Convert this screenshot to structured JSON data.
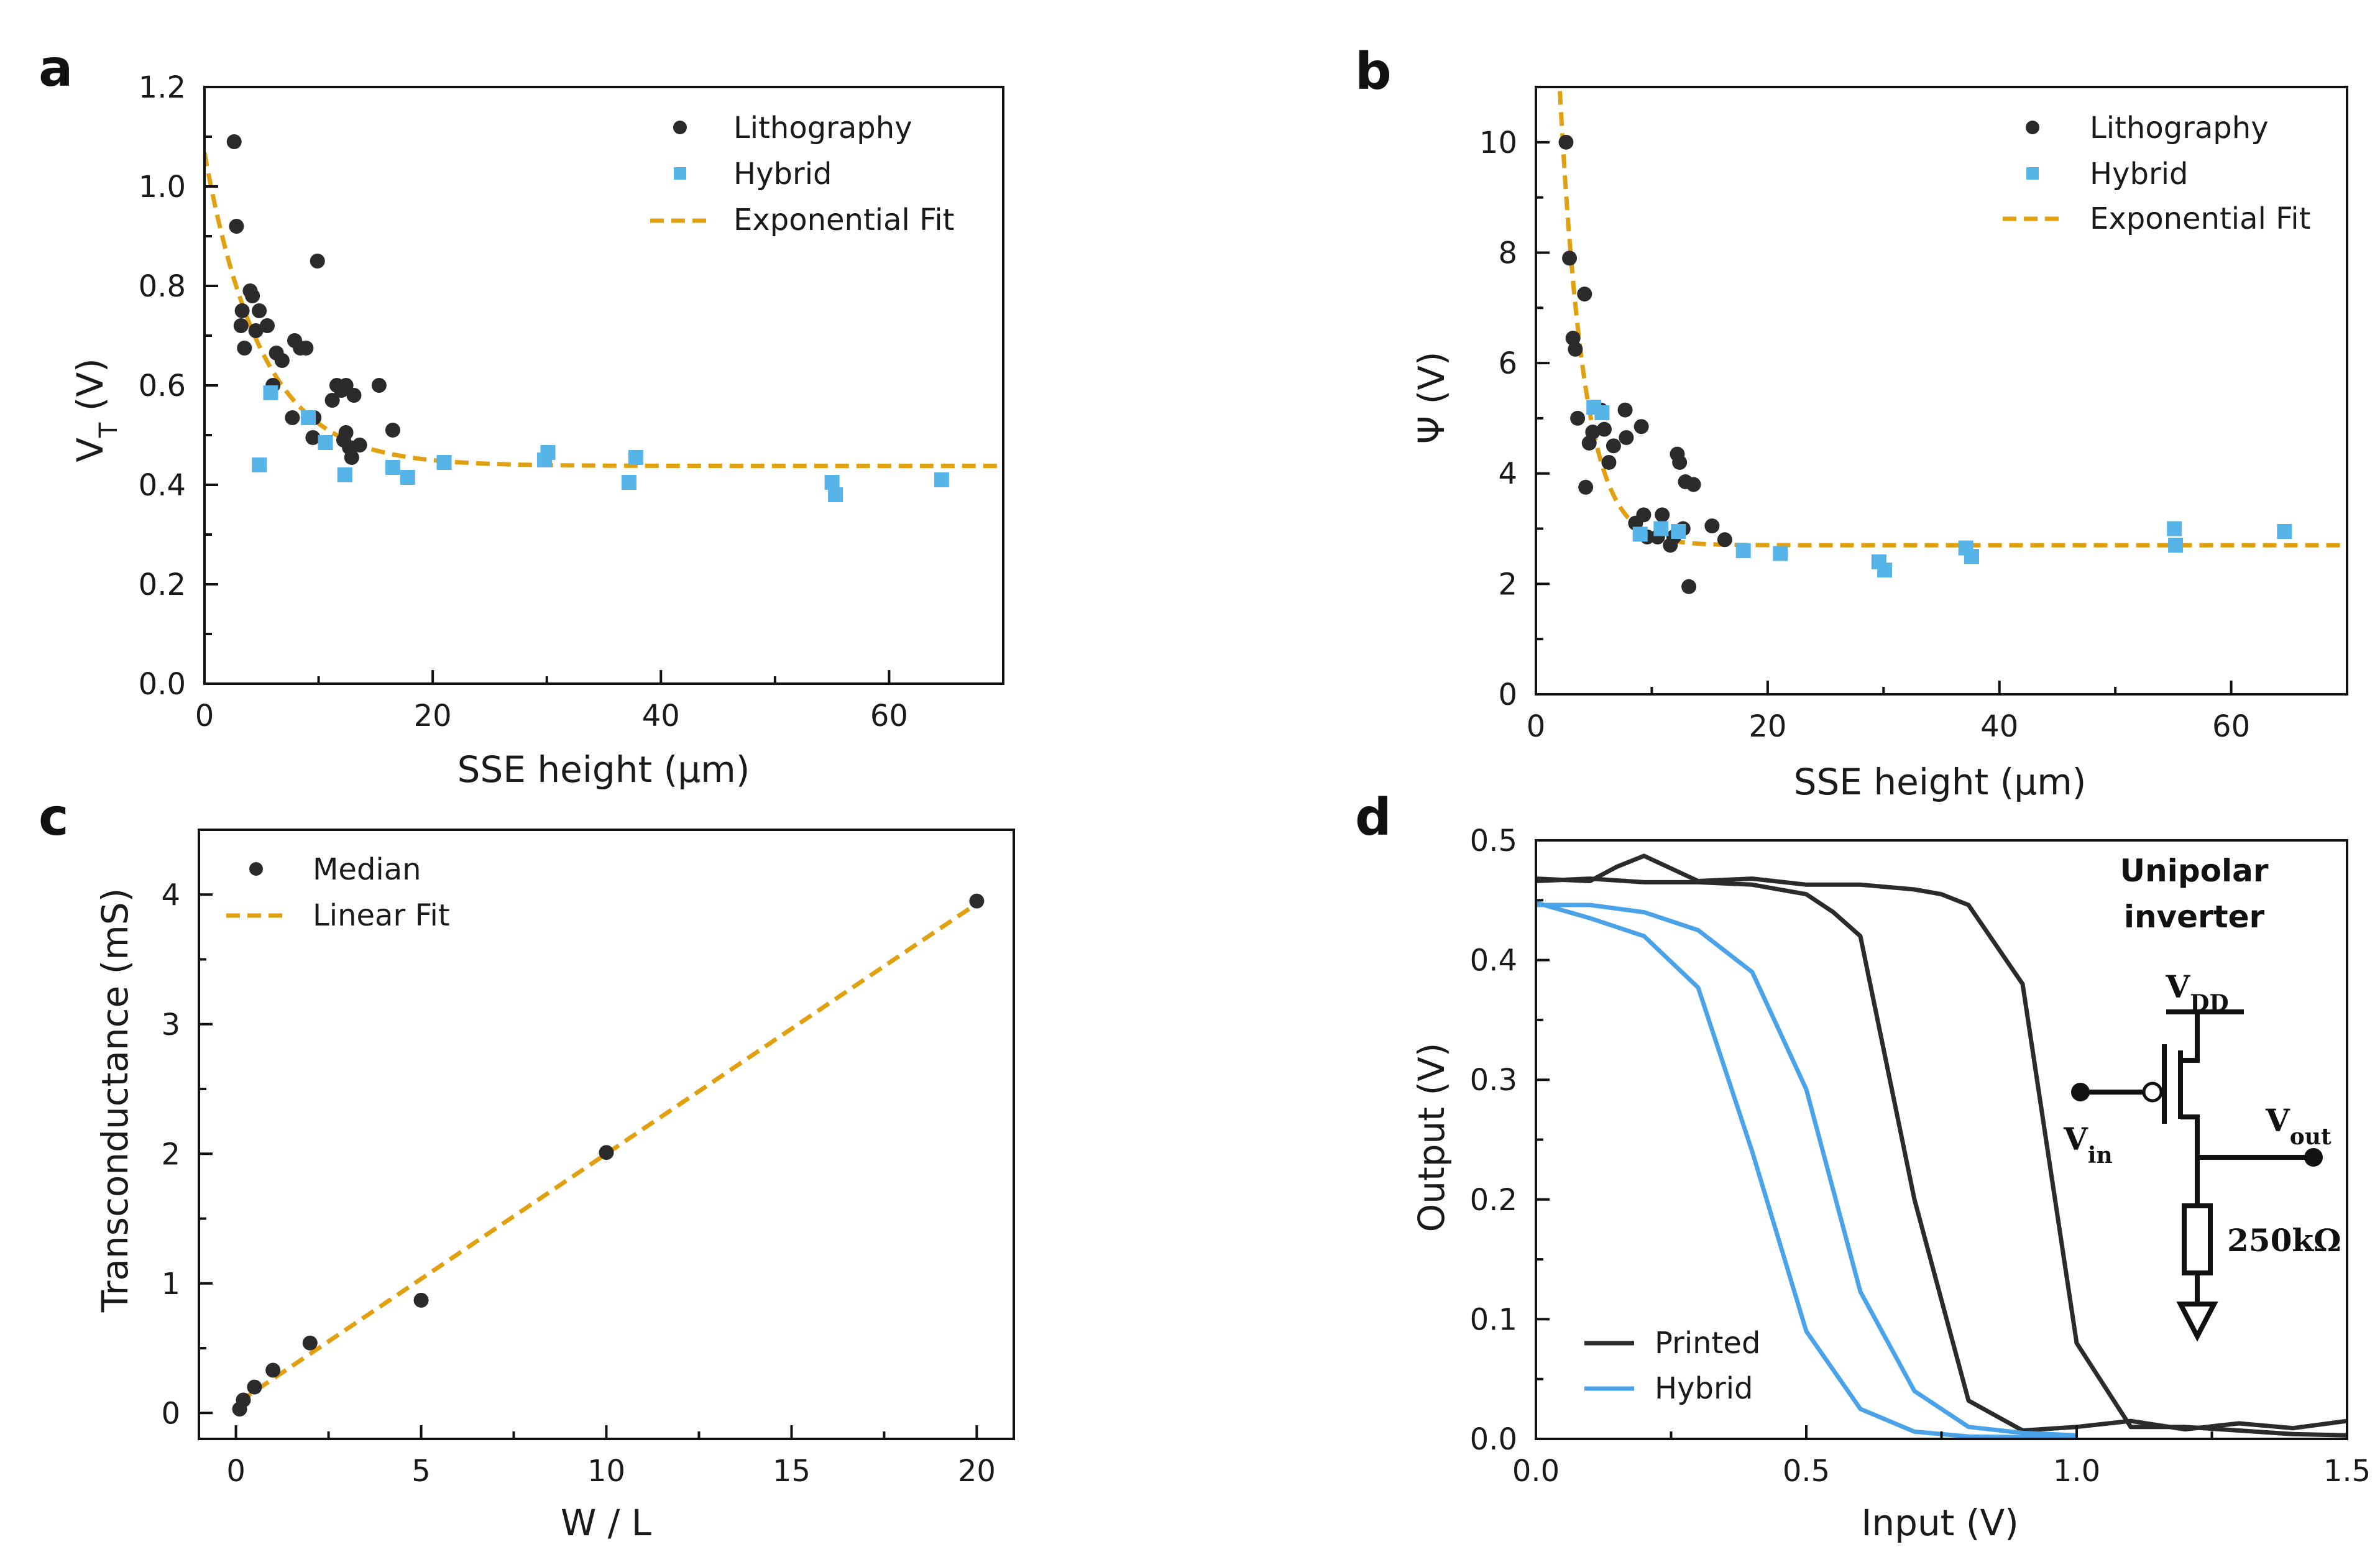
{
  "colors": {
    "lithography": "#2b2b2b",
    "hybrid": "#56b4e9",
    "fit": "#e0a010",
    "printed_line": "#2b2b2b",
    "hybrid_line": "#4aa3e8",
    "axes": "#111111"
  },
  "chart_data": [
    {
      "id": "a",
      "panel_label": "a",
      "type": "scatter",
      "xlabel": "SSE height (μm)",
      "ylabel_main": "V",
      "ylabel_sub": "T",
      "ylabel_unit": " (V)",
      "xlim": [
        0,
        70
      ],
      "ylim": [
        0,
        1.2
      ],
      "xticks": [
        0,
        20,
        40,
        60
      ],
      "xtick_labels": [
        "0",
        "20",
        "40",
        "60"
      ],
      "yticks": [
        0,
        0.2,
        0.4,
        0.6,
        0.8,
        1.0,
        1.2
      ],
      "ytick_labels": [
        "0.0",
        "0.2",
        "0.4",
        "0.6",
        "0.8",
        "1.0",
        "1.2"
      ],
      "legend": [
        "Lithography",
        "Hybrid",
        "Exponential Fit"
      ],
      "series": [
        {
          "name": "Lithography",
          "marker": "circle",
          "points": [
            [
              2.6,
              1.09
            ],
            [
              2.8,
              0.92
            ],
            [
              3.2,
              0.72
            ],
            [
              3.3,
              0.75
            ],
            [
              3.5,
              0.675
            ],
            [
              4.0,
              0.79
            ],
            [
              4.2,
              0.78
            ],
            [
              4.5,
              0.71
            ],
            [
              4.8,
              0.75
            ],
            [
              5.5,
              0.72
            ],
            [
              6.0,
              0.6
            ],
            [
              6.3,
              0.665
            ],
            [
              6.8,
              0.65
            ],
            [
              7.7,
              0.535
            ],
            [
              7.9,
              0.69
            ],
            [
              8.4,
              0.675
            ],
            [
              8.9,
              0.675
            ],
            [
              9.5,
              0.495
            ],
            [
              9.6,
              0.535
            ],
            [
              9.9,
              0.85
            ],
            [
              11.2,
              0.57
            ],
            [
              11.6,
              0.6
            ],
            [
              12.0,
              0.59
            ],
            [
              12.2,
              0.49
            ],
            [
              12.4,
              0.505
            ],
            [
              12.4,
              0.6
            ],
            [
              12.7,
              0.475
            ],
            [
              12.9,
              0.455
            ],
            [
              13.1,
              0.58
            ],
            [
              13.6,
              0.48
            ],
            [
              15.3,
              0.6
            ],
            [
              16.5,
              0.51
            ]
          ]
        },
        {
          "name": "Hybrid",
          "marker": "square",
          "points": [
            [
              4.8,
              0.44
            ],
            [
              5.8,
              0.585
            ],
            [
              9.1,
              0.535
            ],
            [
              10.6,
              0.485
            ],
            [
              12.3,
              0.42
            ],
            [
              16.5,
              0.435
            ],
            [
              17.8,
              0.415
            ],
            [
              21.0,
              0.445
            ],
            [
              29.8,
              0.45
            ],
            [
              30.1,
              0.465
            ],
            [
              37.2,
              0.405
            ],
            [
              37.8,
              0.455
            ],
            [
              55.0,
              0.405
            ],
            [
              55.3,
              0.38
            ],
            [
              64.6,
              0.41
            ]
          ]
        },
        {
          "name": "Exponential Fit",
          "type": "line",
          "model": "exponential",
          "a": 0.438,
          "b": 0.63,
          "tau": 5.0,
          "x_range": [
            0,
            70
          ]
        }
      ]
    },
    {
      "id": "b",
      "panel_label": "b",
      "type": "scatter",
      "xlabel": "SSE height (μm)",
      "ylabel_main": "Ψ (V)",
      "ylabel_sub": "",
      "ylabel_unit": "",
      "xlim": [
        0,
        70
      ],
      "ylim": [
        0,
        11
      ],
      "xticks": [
        0,
        20,
        40,
        60
      ],
      "xtick_labels": [
        "0",
        "20",
        "40",
        "60"
      ],
      "yticks": [
        0,
        2,
        4,
        6,
        8,
        10
      ],
      "ytick_labels": [
        "0",
        "2",
        "4",
        "6",
        "8",
        "10"
      ],
      "legend": [
        "Lithography",
        "Hybrid",
        "Exponential Fit"
      ],
      "series": [
        {
          "name": "Lithography",
          "marker": "circle",
          "points": [
            [
              2.6,
              10.0
            ],
            [
              2.9,
              7.9
            ],
            [
              3.2,
              6.45
            ],
            [
              3.4,
              6.25
            ],
            [
              3.6,
              5.0
            ],
            [
              4.2,
              7.25
            ],
            [
              4.3,
              3.75
            ],
            [
              4.6,
              4.55
            ],
            [
              4.9,
              4.75
            ],
            [
              5.6,
              5.15
            ],
            [
              5.9,
              4.8
            ],
            [
              6.3,
              4.2
            ],
            [
              6.7,
              4.5
            ],
            [
              7.7,
              5.15
            ],
            [
              7.8,
              4.65
            ],
            [
              8.6,
              3.1
            ],
            [
              9.1,
              4.85
            ],
            [
              9.3,
              3.25
            ],
            [
              9.6,
              2.85
            ],
            [
              10.5,
              2.85
            ],
            [
              10.9,
              3.25
            ],
            [
              11.6,
              2.7
            ],
            [
              11.9,
              2.85
            ],
            [
              12.2,
              4.35
            ],
            [
              12.4,
              4.2
            ],
            [
              12.7,
              3.0
            ],
            [
              12.9,
              3.85
            ],
            [
              13.2,
              1.95
            ],
            [
              13.6,
              3.8
            ],
            [
              15.2,
              3.05
            ],
            [
              16.3,
              2.8
            ]
          ]
        },
        {
          "name": "Hybrid",
          "marker": "square",
          "points": [
            [
              5.0,
              5.2
            ],
            [
              5.7,
              5.1
            ],
            [
              9.0,
              2.9
            ],
            [
              10.8,
              3.0
            ],
            [
              12.3,
              2.95
            ],
            [
              17.9,
              2.6
            ],
            [
              21.1,
              2.55
            ],
            [
              29.6,
              2.4
            ],
            [
              30.1,
              2.25
            ],
            [
              37.1,
              2.65
            ],
            [
              37.6,
              2.5
            ],
            [
              55.1,
              3.0
            ],
            [
              55.2,
              2.7
            ],
            [
              64.6,
              2.95
            ]
          ]
        },
        {
          "name": "Exponential Fit",
          "type": "line",
          "model": "exponential",
          "a": 2.7,
          "b": 22.0,
          "tau": 2.1,
          "x_range": [
            0,
            70
          ]
        }
      ]
    },
    {
      "id": "c",
      "panel_label": "c",
      "type": "scatter",
      "xlabel": "W / L",
      "ylabel_main": "Transconductance (mS)",
      "ylabel_sub": "",
      "ylabel_unit": "",
      "xlim": [
        -1,
        21
      ],
      "ylim": [
        -0.2,
        4.5
      ],
      "xticks": [
        0,
        5,
        10,
        15,
        20
      ],
      "xtick_labels": [
        "0",
        "5",
        "10",
        "15",
        "20"
      ],
      "yticks": [
        0,
        1,
        2,
        3,
        4
      ],
      "ytick_labels": [
        "0",
        "1",
        "2",
        "3",
        "4"
      ],
      "legend": [
        "Median",
        "Linear Fit"
      ],
      "series": [
        {
          "name": "Median",
          "marker": "circle",
          "points": [
            [
              0.1,
              0.03
            ],
            [
              0.2,
              0.1
            ],
            [
              0.5,
              0.2
            ],
            [
              1.0,
              0.33
            ],
            [
              2.0,
              0.54
            ],
            [
              5.0,
              0.87
            ],
            [
              10.0,
              2.01
            ],
            [
              20.0,
              3.95
            ]
          ]
        },
        {
          "name": "Linear Fit",
          "type": "line",
          "model": "linear",
          "slope": 0.193,
          "intercept": 0.07,
          "x_range": [
            0.1,
            20
          ]
        }
      ]
    },
    {
      "id": "d",
      "panel_label": "d",
      "type": "line",
      "xlabel": "Input (V)",
      "ylabel_main": "Output (V)",
      "ylabel_sub": "",
      "ylabel_unit": "",
      "xlim": [
        0,
        1.5
      ],
      "ylim": [
        0,
        0.5
      ],
      "xticks": [
        0,
        0.5,
        1.0,
        1.5
      ],
      "xtick_labels": [
        "0.0",
        "0.5",
        "1.0",
        "1.5"
      ],
      "yticks": [
        0,
        0.1,
        0.2,
        0.3,
        0.4,
        0.5
      ],
      "ytick_labels": [
        "0.0",
        "0.1",
        "0.2",
        "0.3",
        "0.4",
        "0.5"
      ],
      "legend": [
        "Printed",
        "Hybrid"
      ],
      "series": [
        {
          "name": "Printed",
          "curves": [
            [
              [
                0,
                0.466
              ],
              [
                0.1,
                0.468
              ],
              [
                0.2,
                0.465
              ],
              [
                0.3,
                0.465
              ],
              [
                0.4,
                0.463
              ],
              [
                0.5,
                0.455
              ],
              [
                0.55,
                0.44
              ],
              [
                0.6,
                0.42
              ],
              [
                0.7,
                0.2
              ],
              [
                0.8,
                0.032
              ],
              [
                0.9,
                0.007
              ],
              [
                1.0,
                0.01
              ],
              [
                1.1,
                0.015
              ],
              [
                1.2,
                0.008
              ],
              [
                1.3,
                0.013
              ],
              [
                1.4,
                0.009
              ],
              [
                1.5,
                0.015
              ]
            ],
            [
              [
                0,
                0.468
              ],
              [
                0.1,
                0.466
              ],
              [
                0.15,
                0.478
              ],
              [
                0.2,
                0.487
              ],
              [
                0.3,
                0.466
              ],
              [
                0.4,
                0.468
              ],
              [
                0.5,
                0.463
              ],
              [
                0.6,
                0.463
              ],
              [
                0.7,
                0.459
              ],
              [
                0.75,
                0.455
              ],
              [
                0.8,
                0.446
              ],
              [
                0.9,
                0.38
              ],
              [
                1.0,
                0.08
              ],
              [
                1.1,
                0.01
              ],
              [
                1.2,
                0.01
              ],
              [
                1.3,
                0.007
              ],
              [
                1.4,
                0.004
              ],
              [
                1.5,
                0.003
              ]
            ]
          ]
        },
        {
          "name": "Hybrid",
          "curves": [
            [
              [
                0,
                0.448
              ],
              [
                0.1,
                0.435
              ],
              [
                0.2,
                0.42
              ],
              [
                0.3,
                0.377
              ],
              [
                0.4,
                0.24
              ],
              [
                0.5,
                0.09
              ],
              [
                0.6,
                0.025
              ],
              [
                0.7,
                0.006
              ],
              [
                0.8,
                0.002
              ],
              [
                1.0,
                0.001
              ]
            ],
            [
              [
                0,
                0.446
              ],
              [
                0.1,
                0.446
              ],
              [
                0.2,
                0.44
              ],
              [
                0.3,
                0.425
              ],
              [
                0.4,
                0.39
              ],
              [
                0.5,
                0.292
              ],
              [
                0.6,
                0.123
              ],
              [
                0.7,
                0.04
              ],
              [
                0.8,
                0.01
              ],
              [
                0.9,
                0.005
              ],
              [
                1.0,
                0.003
              ]
            ]
          ]
        }
      ],
      "inset": {
        "title_line1": "Unipolar",
        "title_line2": "inverter",
        "vdd": "V",
        "vdd_sub": "DD",
        "vin": "V",
        "vin_sub": "in",
        "vout": "V",
        "vout_sub": "out",
        "resistor": "250kΩ"
      }
    }
  ]
}
